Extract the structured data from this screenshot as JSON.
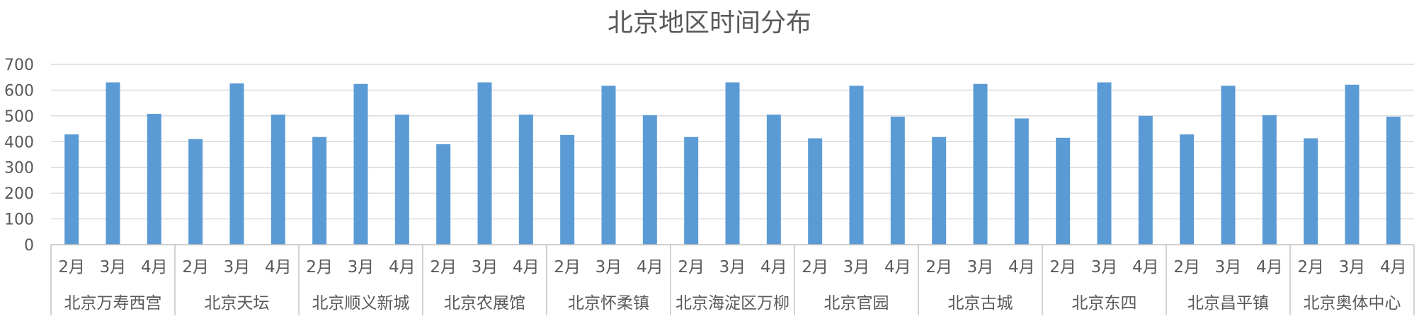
{
  "chart_data": {
    "type": "bar",
    "title": "北京地区时间分布",
    "xlabel": "",
    "ylabel": "",
    "ylim": [
      0,
      700
    ],
    "yticks": [
      0,
      100,
      200,
      300,
      400,
      500,
      600,
      700
    ],
    "grid": true,
    "legend": "none",
    "bar_color": "#5b9bd5",
    "months": [
      "2月",
      "3月",
      "4月"
    ],
    "groups": [
      {
        "name": "北京万寿西宫",
        "values": [
          428,
          630,
          508
        ]
      },
      {
        "name": "北京天坛",
        "values": [
          410,
          626,
          505
        ]
      },
      {
        "name": "北京顺义新城",
        "values": [
          418,
          624,
          505
        ]
      },
      {
        "name": "北京农展馆",
        "values": [
          390,
          630,
          505
        ]
      },
      {
        "name": "北京怀柔镇",
        "values": [
          426,
          617,
          503
        ]
      },
      {
        "name": "北京海淀区万柳",
        "values": [
          418,
          630,
          505
        ]
      },
      {
        "name": "北京官园",
        "values": [
          413,
          617,
          497
        ]
      },
      {
        "name": "北京古城",
        "values": [
          418,
          624,
          490
        ]
      },
      {
        "name": "北京东四",
        "values": [
          415,
          630,
          500
        ]
      },
      {
        "name": "北京昌平镇",
        "values": [
          428,
          617,
          503
        ]
      },
      {
        "name": "北京奥体中心",
        "values": [
          413,
          621,
          497
        ]
      }
    ]
  }
}
